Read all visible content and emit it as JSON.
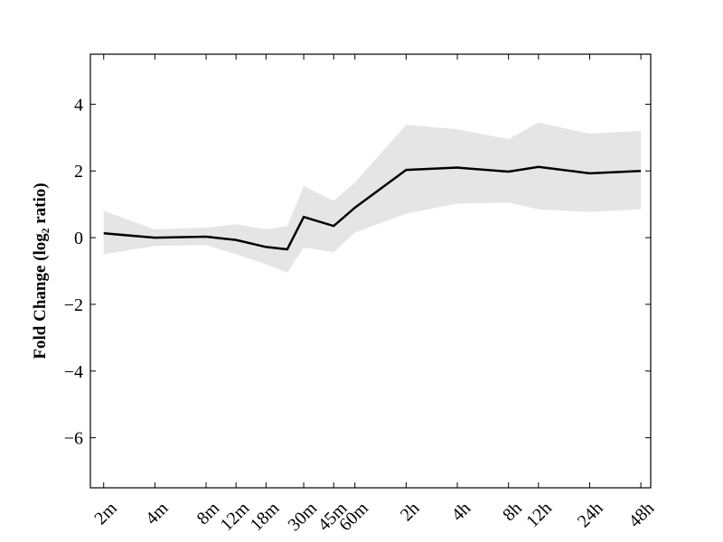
{
  "chart_data": {
    "type": "line",
    "ylabel": "Fold Change (log₂ ratio)",
    "x": [
      2,
      4,
      8,
      12,
      18,
      24,
      30,
      45,
      60,
      120,
      240,
      480,
      720,
      1440,
      2880
    ],
    "values": [
      0.13,
      0.0,
      0.03,
      -0.07,
      -0.28,
      -0.35,
      0.62,
      0.35,
      0.9,
      2.03,
      2.1,
      1.98,
      2.12,
      1.93,
      2.0
    ],
    "upper": [
      0.8,
      0.25,
      0.3,
      0.4,
      0.25,
      0.35,
      1.55,
      1.1,
      1.65,
      3.38,
      3.25,
      2.95,
      3.45,
      3.12,
      3.2
    ],
    "lower": [
      -0.5,
      -0.25,
      -0.22,
      -0.5,
      -0.8,
      -1.05,
      -0.3,
      -0.43,
      0.15,
      0.72,
      1.02,
      1.05,
      0.85,
      0.77,
      0.85
    ],
    "color": "#000000",
    "band_color": "#e5e5e5",
    "xscale": "log",
    "xlim": [
      1.67,
      3290
    ],
    "ylim": [
      -7.5,
      5.5
    ],
    "xticks": [
      {
        "value": 2,
        "label": "2m"
      },
      {
        "value": 4,
        "label": "4m"
      },
      {
        "value": 8,
        "label": "8m"
      },
      {
        "value": 12,
        "label": "12m"
      },
      {
        "value": 18,
        "label": "18m"
      },
      {
        "value": 30,
        "label": "30m"
      },
      {
        "value": 45,
        "label": "45m"
      },
      {
        "value": 60,
        "label": "60m"
      },
      {
        "value": 120,
        "label": "2h"
      },
      {
        "value": 240,
        "label": "4h"
      },
      {
        "value": 480,
        "label": "8h"
      },
      {
        "value": 720,
        "label": "12h"
      },
      {
        "value": 1440,
        "label": "24h"
      },
      {
        "value": 2880,
        "label": "48h"
      }
    ],
    "yticks": [
      {
        "value": -6,
        "label": "−6"
      },
      {
        "value": -4,
        "label": "−4"
      },
      {
        "value": -2,
        "label": "−2"
      },
      0,
      2,
      4
    ]
  }
}
